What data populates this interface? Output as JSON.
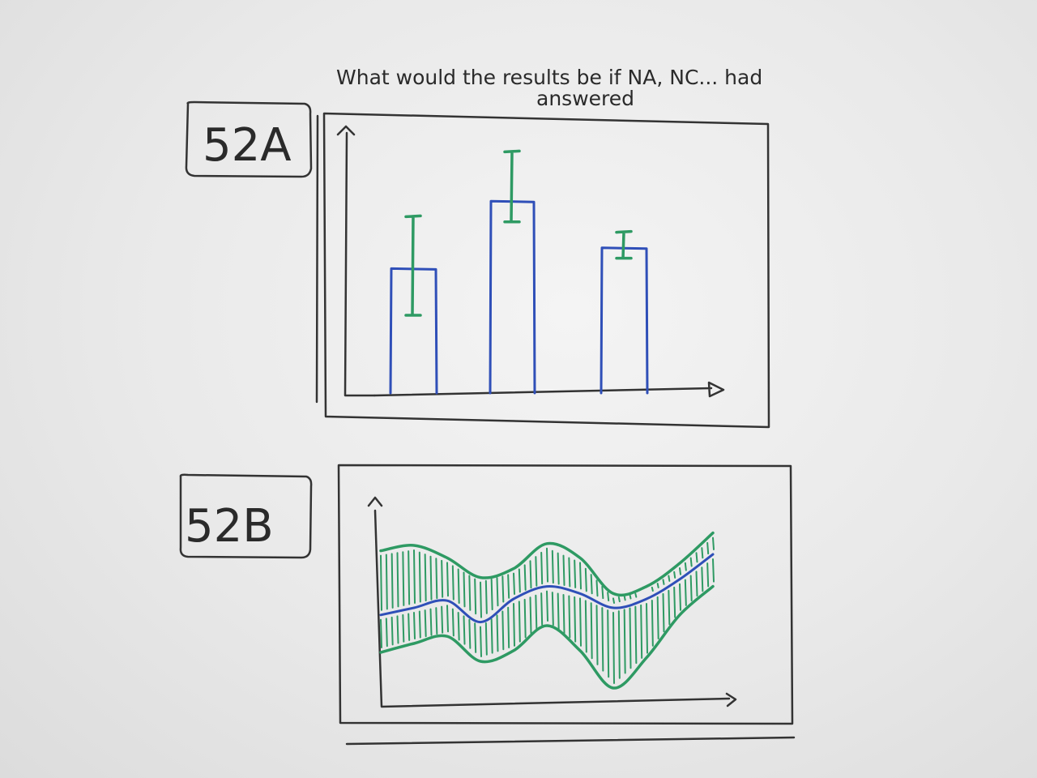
{
  "question": {
    "line1": "What would the results be if NA, NC... had",
    "line2": "answered"
  },
  "figures": [
    {
      "label": "52A"
    },
    {
      "label": "52B"
    }
  ],
  "colors": {
    "ink": "#333333",
    "bar_outline": "#2f4fb8",
    "error_and_band": "#2e9a63",
    "line": "#2f4fb8"
  },
  "chart_data": [
    {
      "type": "bar",
      "categories": [
        "",
        "",
        ""
      ],
      "values": [
        0.48,
        0.74,
        0.56
      ],
      "error": [
        [
          0.3,
          0.68
        ],
        [
          0.66,
          0.93
        ],
        [
          0.52,
          0.62
        ]
      ],
      "xlabel": "",
      "ylabel": "",
      "ylim": [
        0,
        1
      ],
      "grid": false
    },
    {
      "type": "area",
      "x": [
        0,
        0.1,
        0.2,
        0.3,
        0.4,
        0.5,
        0.6,
        0.7,
        0.8,
        0.9,
        1.0
      ],
      "series": [
        {
          "name": "",
          "role": "upper",
          "values": [
            0.82,
            0.85,
            0.78,
            0.67,
            0.72,
            0.86,
            0.78,
            0.58,
            0.62,
            0.75,
            0.92
          ]
        },
        {
          "name": "",
          "role": "center",
          "values": [
            0.46,
            0.5,
            0.54,
            0.42,
            0.55,
            0.62,
            0.58,
            0.5,
            0.55,
            0.66,
            0.8
          ]
        },
        {
          "name": "",
          "role": "lower",
          "values": [
            0.25,
            0.3,
            0.34,
            0.2,
            0.26,
            0.4,
            0.26,
            0.05,
            0.22,
            0.46,
            0.62
          ]
        }
      ],
      "xlabel": "",
      "ylabel": "",
      "ylim": [
        0,
        1
      ],
      "grid": false
    }
  ]
}
